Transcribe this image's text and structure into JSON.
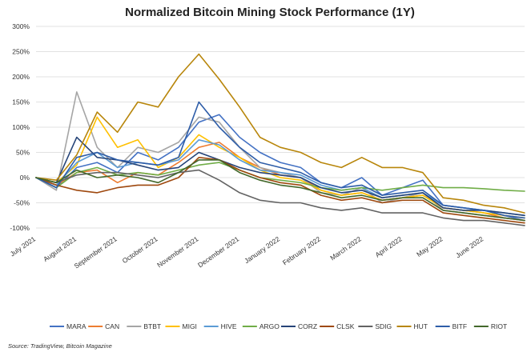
{
  "chart_data": {
    "type": "line",
    "title": "Normalized Bitcoin Mining Stock Performance (1Y)",
    "ylim": [
      -100,
      300
    ],
    "yticks": [
      "300%",
      "250%",
      "200%",
      "150%",
      "100%",
      "50%",
      "0%",
      "-50%",
      "-100%"
    ],
    "ytick_values": [
      300,
      250,
      200,
      150,
      100,
      50,
      0,
      -50,
      -100
    ],
    "x_domain": [
      0,
      12
    ],
    "xticks": [
      "July 2021",
      "August 2021",
      "September 2021",
      "October 2021",
      "November 2021",
      "December 2021",
      "January 2022",
      "February 2022",
      "March 2022",
      "April 2022",
      "May 2022",
      "June 2022"
    ],
    "grid": "horizontal",
    "legend_position": "bottom",
    "x": [
      0,
      0.5,
      1,
      1.5,
      2,
      2.5,
      3,
      3.5,
      4,
      4.5,
      5,
      5.5,
      6,
      6.5,
      7,
      7.5,
      8,
      8.5,
      9,
      9.5,
      10,
      10.5,
      11,
      11.5,
      12
    ],
    "series": [
      {
        "name": "MARA",
        "color": "#4472C4",
        "values": [
          0,
          -20,
          20,
          30,
          10,
          50,
          35,
          60,
          110,
          125,
          80,
          50,
          30,
          20,
          -10,
          -20,
          0,
          -35,
          -20,
          -5,
          -55,
          -60,
          -65,
          -75,
          -85
        ]
      },
      {
        "name": "CAN",
        "color": "#ED7D31",
        "values": [
          0,
          -15,
          10,
          15,
          -10,
          10,
          5,
          30,
          60,
          70,
          40,
          20,
          5,
          0,
          -25,
          -35,
          -30,
          -45,
          -40,
          -35,
          -60,
          -65,
          -70,
          -80,
          -85
        ]
      },
      {
        "name": "BTBT",
        "color": "#A5A5A5",
        "values": [
          0,
          -25,
          170,
          60,
          20,
          60,
          50,
          70,
          120,
          110,
          60,
          20,
          10,
          0,
          -30,
          -35,
          -20,
          -50,
          -40,
          -30,
          -65,
          -70,
          -75,
          -80,
          -85
        ]
      },
      {
        "name": "MIGI",
        "color": "#FFC000",
        "values": [
          0,
          -10,
          25,
          120,
          60,
          75,
          20,
          40,
          85,
          60,
          40,
          15,
          0,
          -5,
          -25,
          -35,
          -30,
          -45,
          -40,
          -35,
          -60,
          -65,
          -70,
          -75,
          -80
        ]
      },
      {
        "name": "HIVE",
        "color": "#5B9BD5",
        "values": [
          0,
          -15,
          30,
          50,
          20,
          30,
          25,
          35,
          75,
          65,
          35,
          15,
          10,
          5,
          -15,
          -25,
          -20,
          -40,
          -35,
          -30,
          -55,
          -60,
          -65,
          -70,
          -75
        ]
      },
      {
        "name": "ARGO",
        "color": "#70AD47",
        "values": [
          0,
          -20,
          10,
          20,
          5,
          10,
          5,
          15,
          25,
          30,
          15,
          0,
          -5,
          -10,
          -20,
          -25,
          -20,
          -25,
          -20,
          -15,
          -20,
          -20,
          -22,
          -25,
          -27
        ]
      },
      {
        "name": "CORZ",
        "color": "#264478",
        "values": [
          0,
          -10,
          80,
          40,
          35,
          25,
          15,
          20,
          50,
          35,
          20,
          10,
          5,
          0,
          -20,
          -30,
          -25,
          -40,
          -35,
          -30,
          -60,
          -65,
          -65,
          -70,
          -75
        ]
      },
      {
        "name": "CLSK",
        "color": "#9E480E",
        "values": [
          0,
          -15,
          -25,
          -30,
          -20,
          -15,
          -15,
          0,
          40,
          35,
          15,
          0,
          -10,
          -15,
          -35,
          -45,
          -40,
          -50,
          -45,
          -45,
          -70,
          -75,
          -80,
          -85,
          -90
        ]
      },
      {
        "name": "SDIG",
        "color": "#636363",
        "values": [
          0,
          -10,
          5,
          10,
          10,
          5,
          0,
          10,
          15,
          -5,
          -30,
          -45,
          -50,
          -50,
          -60,
          -65,
          -60,
          -70,
          -70,
          -70,
          -80,
          -85,
          -85,
          -90,
          -95
        ]
      },
      {
        "name": "HUT",
        "color": "#B8860B",
        "values": [
          0,
          -5,
          45,
          130,
          90,
          150,
          140,
          200,
          245,
          195,
          140,
          80,
          60,
          50,
          30,
          20,
          40,
          20,
          20,
          10,
          -40,
          -45,
          -55,
          -60,
          -70
        ]
      },
      {
        "name": "BITF",
        "color": "#2E5DA8",
        "values": [
          0,
          -20,
          40,
          50,
          35,
          30,
          25,
          40,
          150,
          100,
          60,
          30,
          20,
          10,
          -10,
          -20,
          -15,
          -35,
          -30,
          -25,
          -55,
          -60,
          -65,
          -75,
          -80
        ]
      },
      {
        "name": "RIOT",
        "color": "#43682B",
        "values": [
          0,
          -10,
          15,
          0,
          5,
          0,
          -10,
          10,
          35,
          35,
          10,
          -5,
          -15,
          -20,
          -30,
          -40,
          -35,
          -45,
          -40,
          -40,
          -65,
          -70,
          -75,
          -80,
          -85
        ]
      }
    ]
  },
  "source": "Source: TradingView, Bitcoin Magazine"
}
